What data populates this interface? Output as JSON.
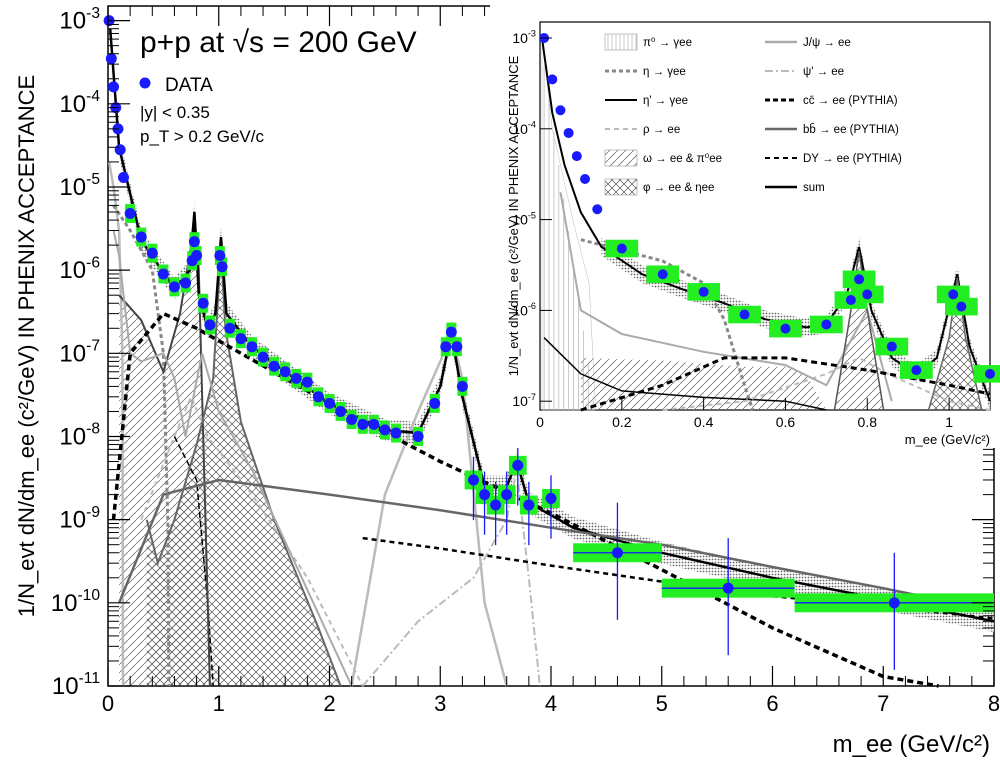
{
  "chart_data": [
    {
      "type": "line",
      "title": "p+p at √s = 200 GeV",
      "annotations": [
        "|y| < 0.35",
        "p_T > 0.2 GeV/c"
      ],
      "xlabel": "m_ee (GeV/c²)",
      "ylabel": "1/N_evt dN/dm_ee (c²/GeV) IN PHENIX ACCEPTANCE",
      "xlim": [
        0,
        8
      ],
      "ylim": [
        1e-11,
        0.0015
      ],
      "yscale": "log",
      "x_ticks": [
        "0",
        "1",
        "2",
        "3",
        "4",
        "5",
        "6",
        "7",
        "8"
      ],
      "y_ticks": [
        "10^-11",
        "10^-10",
        "10^-9",
        "10^-8",
        "10^-7",
        "10^-6",
        "10^-5",
        "10^-4",
        "10^-3"
      ],
      "legend_entry": "DATA",
      "data_points": [
        [
          0.01,
          0.001
        ],
        [
          0.03,
          0.00035
        ],
        [
          0.05,
          0.00016
        ],
        [
          0.07,
          9e-05
        ],
        [
          0.09,
          5e-05
        ],
        [
          0.11,
          2.8e-05
        ],
        [
          0.14,
          1.3e-05
        ],
        [
          0.2,
          4.8e-06
        ],
        [
          0.3,
          2.5e-06
        ],
        [
          0.4,
          1.6e-06
        ],
        [
          0.5,
          9e-07
        ],
        [
          0.6,
          6.3e-07
        ],
        [
          0.7,
          7e-07
        ],
        [
          0.76,
          1.3e-06
        ],
        [
          0.78,
          2.2e-06
        ],
        [
          0.8,
          1.5e-06
        ],
        [
          0.86,
          4e-07
        ],
        [
          0.92,
          2.2e-07
        ],
        [
          1.01,
          1.5e-06
        ],
        [
          1.03,
          1.1e-06
        ],
        [
          1.1,
          2e-07
        ],
        [
          1.2,
          1.5e-07
        ],
        [
          1.3,
          1.2e-07
        ],
        [
          1.4,
          9e-08
        ],
        [
          1.5,
          7e-08
        ],
        [
          1.6,
          6e-08
        ],
        [
          1.7,
          5e-08
        ],
        [
          1.8,
          4.5e-08
        ],
        [
          1.9,
          3e-08
        ],
        [
          2.0,
          2.5e-08
        ],
        [
          2.1,
          2e-08
        ],
        [
          2.2,
          1.6e-08
        ],
        [
          2.3,
          1.4e-08
        ],
        [
          2.4,
          1.4e-08
        ],
        [
          2.5,
          1.2e-08
        ],
        [
          2.6,
          1.1e-08
        ],
        [
          2.8,
          1e-08
        ],
        [
          2.95,
          2.5e-08
        ],
        [
          3.05,
          1.2e-07
        ],
        [
          3.1,
          1.8e-07
        ],
        [
          3.15,
          1.2e-07
        ],
        [
          3.2,
          4e-08
        ],
        [
          3.3,
          3e-09
        ],
        [
          3.4,
          2e-09
        ],
        [
          3.5,
          1.5e-09
        ],
        [
          3.6,
          2e-09
        ],
        [
          3.7,
          4.5e-09
        ],
        [
          3.8,
          1.5e-09
        ],
        [
          4.0,
          1.8e-09
        ],
        [
          4.6,
          4e-10
        ],
        [
          5.6,
          1.5e-10
        ],
        [
          7.1,
          1e-10
        ]
      ],
      "series": [
        {
          "name": "sum",
          "values": [
            [
              0.02,
              0.0008
            ],
            [
              0.1,
              3e-05
            ],
            [
              0.3,
              2.3e-06
            ],
            [
              0.6,
              6e-07
            ],
            [
              0.74,
              1e-06
            ],
            [
              0.78,
              5e-06
            ],
            [
              0.82,
              5e-07
            ],
            [
              0.9,
              2e-07
            ],
            [
              0.97,
              3e-07
            ],
            [
              1.02,
              2.5e-06
            ],
            [
              1.07,
              3e-07
            ],
            [
              1.3,
              1.2e-07
            ],
            [
              1.6,
              6e-08
            ],
            [
              2.0,
              2.5e-08
            ],
            [
              2.5,
              1.2e-08
            ],
            [
              2.8,
              1.1e-08
            ],
            [
              3.0,
              4e-08
            ],
            [
              3.1,
              1.8e-07
            ],
            [
              3.2,
              3e-08
            ],
            [
              3.4,
              2.5e-09
            ],
            [
              3.6,
              2.5e-09
            ],
            [
              3.69,
              5e-09
            ],
            [
              3.8,
              1.6e-09
            ],
            [
              4.2,
              8e-10
            ],
            [
              5.0,
              4e-10
            ],
            [
              6.0,
              2e-10
            ],
            [
              7.0,
              1.1e-10
            ],
            [
              8.0,
              6e-11
            ]
          ]
        },
        {
          "name": "cc̄ → ee (PYTHIA)",
          "values": [
            [
              0.05,
              1e-09
            ],
            [
              0.2,
              1e-07
            ],
            [
              0.5,
              3e-07
            ],
            [
              0.8,
              2e-07
            ],
            [
              1.2,
              1e-07
            ],
            [
              2.0,
              2.5e-08
            ],
            [
              3.0,
              5e-09
            ],
            [
              4.0,
              1.2e-09
            ],
            [
              5.0,
              2.5e-10
            ],
            [
              6.0,
              5e-11
            ],
            [
              7.0,
              1.3e-11
            ],
            [
              7.5,
              9e-12
            ]
          ]
        },
        {
          "name": "bb̄ → ee (PYTHIA)",
          "values": [
            [
              0.1,
              1e-10
            ],
            [
              0.5,
              2e-09
            ],
            [
              1.0,
              3e-09
            ],
            [
              2.0,
              2e-09
            ],
            [
              3.0,
              1.3e-09
            ],
            [
              4.0,
              8e-10
            ],
            [
              5.0,
              5e-10
            ],
            [
              6.0,
              2.7e-10
            ],
            [
              7.0,
              1.5e-10
            ],
            [
              8.0,
              8e-11
            ]
          ]
        },
        {
          "name": "DY → ee (PYTHIA)",
          "values": [
            [
              2.3,
              6e-10
            ],
            [
              3.0,
              4.5e-10
            ],
            [
              4.0,
              2.8e-10
            ],
            [
              5.0,
              1.8e-10
            ],
            [
              6.0,
              1.2e-10
            ],
            [
              7.0,
              9e-11
            ],
            [
              8.0,
              6.5e-11
            ]
          ]
        }
      ]
    },
    {
      "type": "line",
      "title": "",
      "xlabel": "m_ee (GeV/c²)",
      "ylabel": "1/N_evt dN/dm_ee (c²/GeV) IN PHENIX ACCEPTANCE",
      "xlim": [
        0,
        1.1
      ],
      "ylim": [
        8e-08,
        0.0015
      ],
      "yscale": "log",
      "x_ticks": [
        "0",
        "0.2",
        "0.4",
        "0.6",
        "0.8",
        "1"
      ],
      "y_ticks": [
        "10^-7",
        "10^-6",
        "10^-5",
        "10^-4",
        "10^-3"
      ],
      "legend": [
        {
          "name": "π⁰ → γee"
        },
        {
          "name": "η → γee"
        },
        {
          "name": "η' → γee"
        },
        {
          "name": "ρ → ee"
        },
        {
          "name": "ω → ee & π⁰ee"
        },
        {
          "name": "φ → ee & ηee"
        },
        {
          "name": "J/ψ → ee"
        },
        {
          "name": "ψ' → ee"
        },
        {
          "name": "cc̄ → ee (PYTHIA)"
        },
        {
          "name": "bb̄ → ee (PYTHIA)"
        },
        {
          "name": "DY → ee (PYTHIA)"
        },
        {
          "name": "sum"
        }
      ]
    }
  ]
}
